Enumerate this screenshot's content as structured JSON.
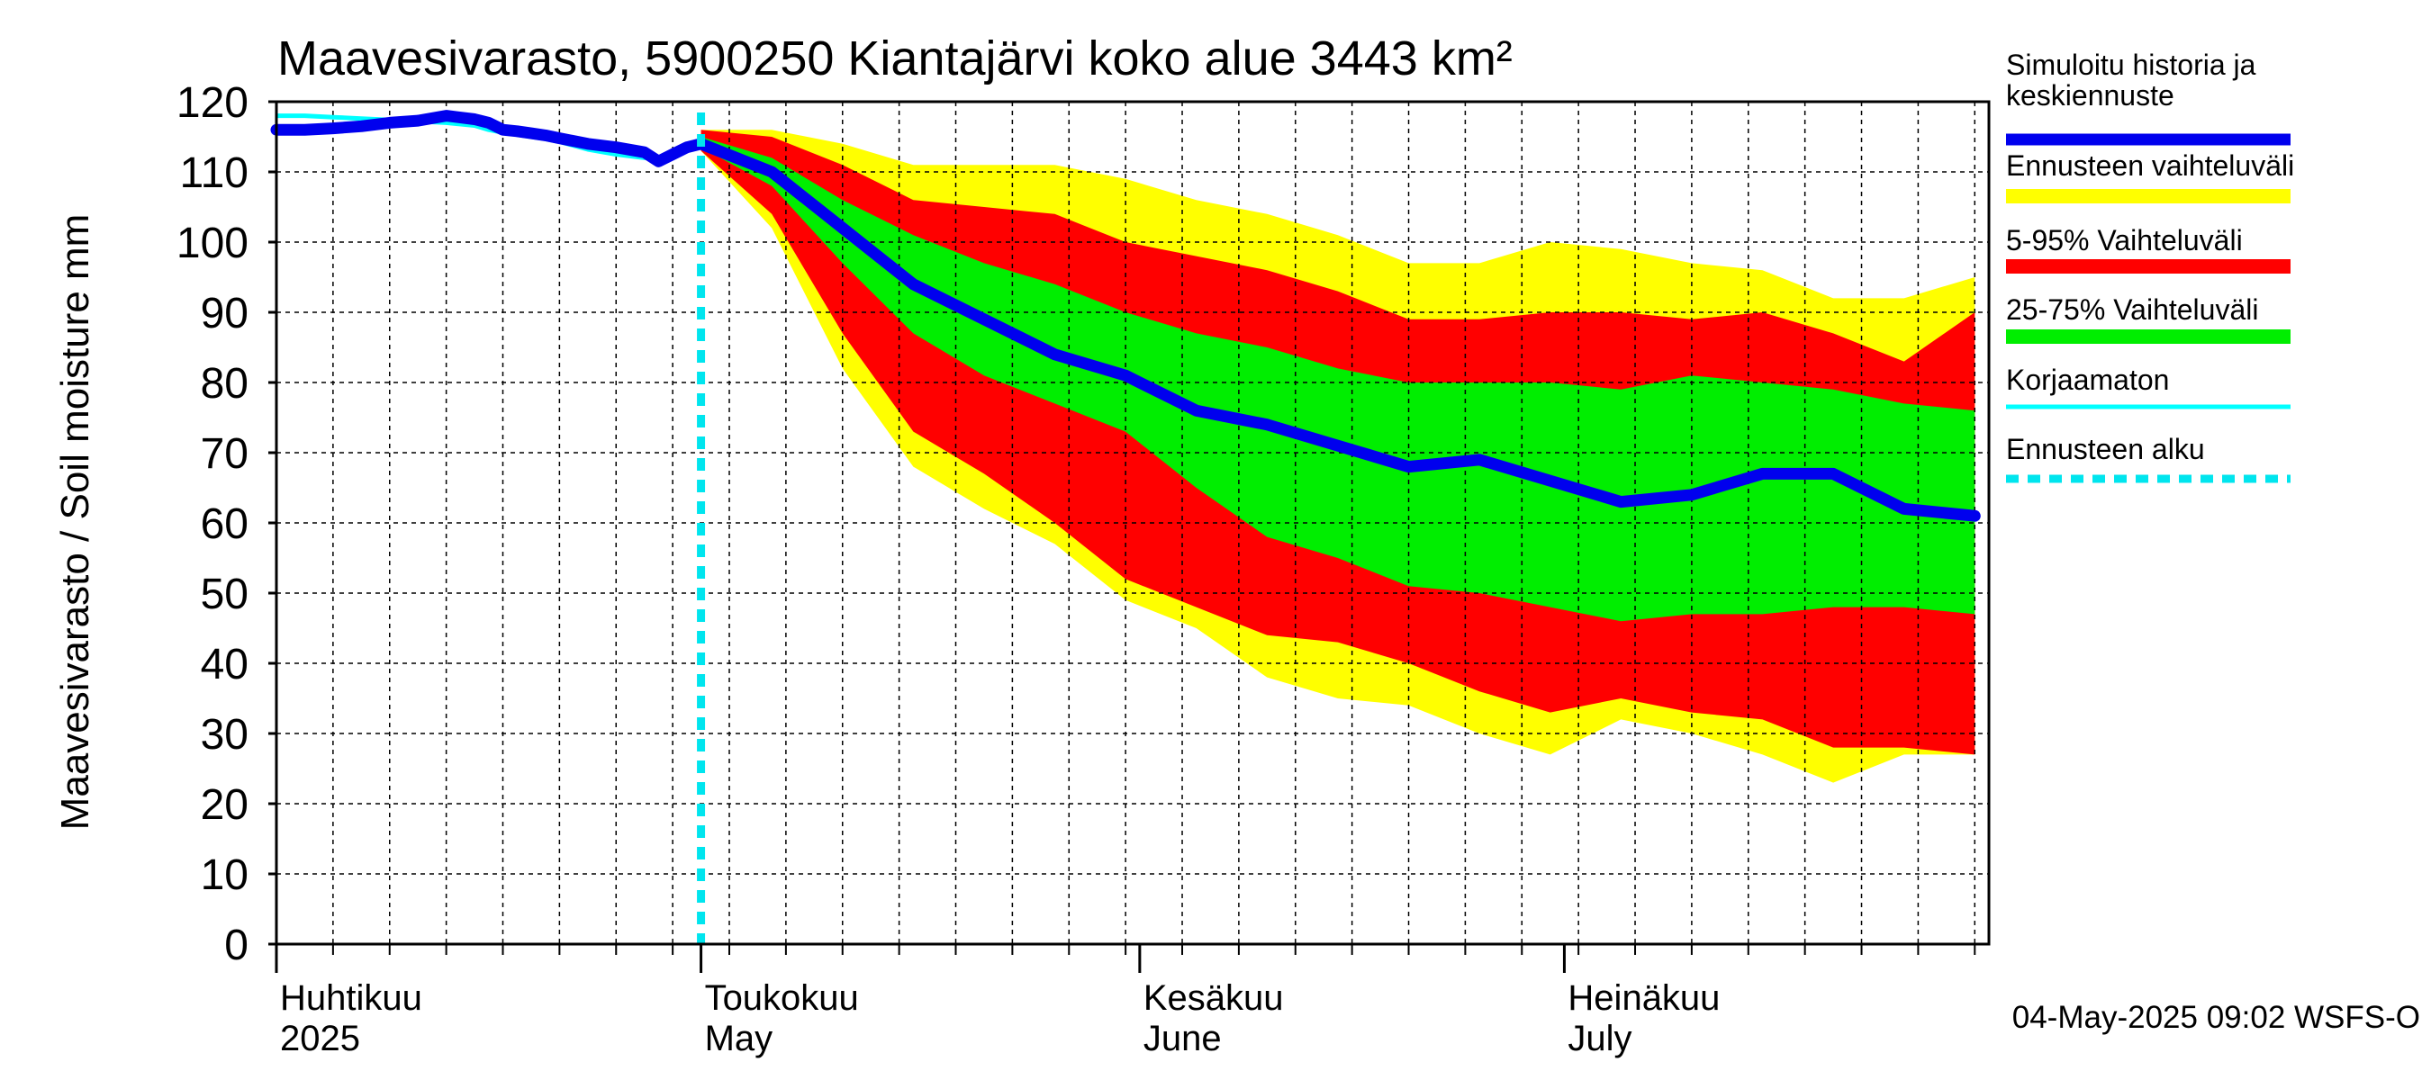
{
  "chart_data": {
    "type": "area",
    "title": "Maavesivarasto, 5900250 Kiantajärvi koko alue 3443 km²",
    "ylabel": "Maavesivarasto / Soil moisture   mm",
    "ylim": [
      0,
      120
    ],
    "yticks": [
      "0",
      "10",
      "20",
      "30",
      "40",
      "50",
      "60",
      "70",
      "80",
      "90",
      "100",
      "110",
      "120"
    ],
    "grid": true,
    "x_range_days": [
      0,
      121
    ],
    "forecast_start_day": 30,
    "month_labels": [
      {
        "day": 0,
        "line1": "Huhtikuu",
        "line2": "2025"
      },
      {
        "day": 30,
        "line1": "Toukokuu",
        "line2": "May"
      },
      {
        "day": 61,
        "line1": "Kesäkuu",
        "line2": "June"
      },
      {
        "day": 91,
        "line1": "Heinäkuu",
        "line2": "July"
      }
    ],
    "legend": [
      {
        "label": "Simuloitu historia ja",
        "label2": "keskiennuste",
        "color": "#0000ee",
        "kind": "line"
      },
      {
        "label": "Ennusteen vaihteluväli",
        "color": "#ffff00",
        "kind": "band"
      },
      {
        "label": "5-95% Vaihteluväli",
        "color": "#ff0000",
        "kind": "band"
      },
      {
        "label": "25-75% Vaihteluväli",
        "color": "#00ee00",
        "kind": "band"
      },
      {
        "label": "Korjaamaton",
        "color": "#00ffff",
        "kind": "line"
      },
      {
        "label": "Ennusteen alku",
        "color": "#00e5ee",
        "kind": "dashed"
      }
    ],
    "footer": "04-May-2025 09:02 WSFS-O",
    "series": {
      "history": {
        "day": [
          0,
          2,
          4,
          6,
          8,
          10,
          12,
          14,
          15,
          16,
          17,
          18,
          19,
          20,
          22,
          24,
          26,
          27,
          28,
          29,
          30,
          31,
          32,
          33,
          34
        ],
        "value": [
          116,
          116,
          116.2,
          116.5,
          117,
          117.3,
          118,
          117.5,
          117,
          116,
          115.8,
          115.5,
          115.2,
          114.8,
          114,
          113.5,
          112.8,
          111.5,
          112.5,
          113.5,
          114.2,
          114.6,
          114.8,
          114.5,
          114
        ]
      },
      "uncorrected": {
        "day": [
          0,
          2,
          4,
          6,
          8,
          10,
          12,
          14,
          15,
          16,
          17,
          18,
          19,
          20,
          22,
          24,
          26,
          27,
          28,
          29,
          30
        ],
        "value": [
          118,
          118,
          117.8,
          117.6,
          117.4,
          117.2,
          117,
          116.6,
          116,
          115.6,
          115.3,
          115,
          114.7,
          114.3,
          113.2,
          112.5,
          112,
          112,
          113,
          113.8,
          114.2
        ]
      },
      "forecast_days": [
        30,
        35,
        40,
        45,
        50,
        55,
        60,
        65,
        70,
        75,
        80,
        85,
        90,
        95,
        100,
        105,
        110,
        115,
        120
      ],
      "mean": [
        114,
        110,
        102,
        94,
        89,
        84,
        81,
        76,
        74,
        71,
        68,
        69,
        66,
        63,
        64,
        67,
        67,
        62,
        61
      ],
      "q25": [
        113.5,
        108,
        97,
        87,
        81,
        77,
        73,
        65,
        58,
        55,
        51,
        50,
        48,
        46,
        47,
        47,
        48,
        48,
        47
      ],
      "q75": [
        115,
        112,
        106,
        101,
        97,
        94,
        90,
        87,
        85,
        82,
        80,
        80,
        80,
        79,
        81,
        80,
        79,
        77,
        76
      ],
      "p5": [
        113,
        104,
        87,
        73,
        67,
        60,
        52,
        48,
        44,
        43,
        40,
        36,
        33,
        35,
        33,
        32,
        28,
        28,
        27
      ],
      "p95": [
        116,
        115,
        111,
        106,
        105,
        104,
        100,
        98,
        96,
        93,
        89,
        89,
        90,
        90,
        89,
        90,
        87,
        83,
        90
      ],
      "min": [
        113,
        102,
        82,
        68,
        62,
        57,
        49,
        45,
        38,
        35,
        34,
        30,
        27,
        32,
        30,
        27,
        23,
        27,
        27
      ],
      "max": [
        116,
        116,
        114,
        111,
        111,
        111,
        109,
        106,
        104,
        101,
        97,
        97,
        100,
        99,
        97,
        96,
        92,
        92,
        95
      ]
    }
  }
}
